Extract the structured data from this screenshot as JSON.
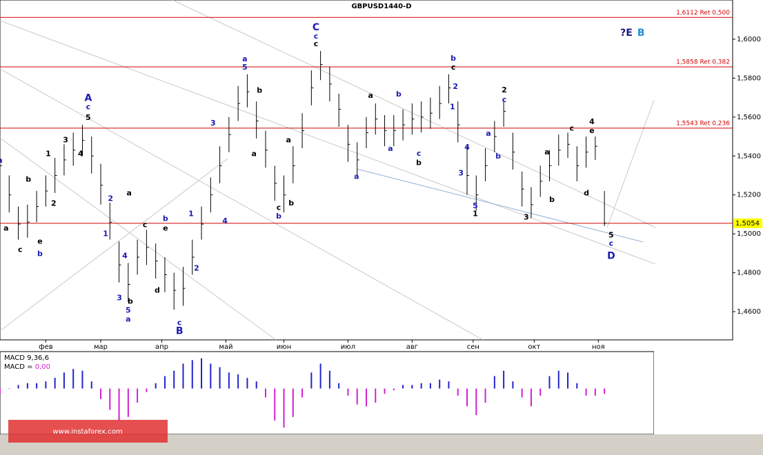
{
  "watermark": "www.instaforex.com",
  "chart_data": [
    {
      "type": "ohlc",
      "title": "GBPUSD1440-D",
      "color": "#000000",
      "x": [
        0,
        3,
        6,
        9,
        12,
        15,
        18,
        21,
        24,
        27,
        30,
        33,
        36,
        39,
        42,
        45,
        48,
        51,
        54,
        57,
        60,
        63,
        66,
        69,
        72,
        75,
        78,
        81,
        84,
        87,
        90,
        93,
        96,
        99,
        102,
        105,
        108,
        111,
        114,
        117,
        120,
        123,
        126,
        129,
        132,
        135,
        138,
        141,
        144,
        147,
        150,
        153,
        156,
        159,
        162,
        165,
        168,
        171,
        174,
        177,
        180,
        183,
        186,
        189,
        192,
        195,
        198
      ],
      "high": [
        1.543,
        1.53,
        1.514,
        1.515,
        1.522,
        1.53,
        1.539,
        1.546,
        1.552,
        1.556,
        1.55,
        1.536,
        1.516,
        1.496,
        1.485,
        1.497,
        1.502,
        1.495,
        1.488,
        1.48,
        1.483,
        1.497,
        1.514,
        1.529,
        1.545,
        1.56,
        1.576,
        1.582,
        1.568,
        1.553,
        1.535,
        1.53,
        1.545,
        1.562,
        1.584,
        1.594,
        1.586,
        1.572,
        1.556,
        1.547,
        1.56,
        1.567,
        1.561,
        1.561,
        1.564,
        1.567,
        1.568,
        1.57,
        1.576,
        1.582,
        1.568,
        1.545,
        1.53,
        1.544,
        1.558,
        1.568,
        1.552,
        1.532,
        1.524,
        1.535,
        1.543,
        1.551,
        1.552,
        1.545,
        1.55,
        1.55,
        1.522
      ],
      "low": [
        1.527,
        1.511,
        1.497,
        1.498,
        1.506,
        1.514,
        1.521,
        1.53,
        1.535,
        1.54,
        1.531,
        1.515,
        1.497,
        1.475,
        1.465,
        1.479,
        1.484,
        1.477,
        1.47,
        1.461,
        1.463,
        1.479,
        1.497,
        1.511,
        1.526,
        1.542,
        1.558,
        1.565,
        1.549,
        1.534,
        1.517,
        1.511,
        1.526,
        1.544,
        1.566,
        1.579,
        1.568,
        1.555,
        1.537,
        1.53,
        1.544,
        1.551,
        1.545,
        1.545,
        1.548,
        1.551,
        1.552,
        1.554,
        1.559,
        1.567,
        1.547,
        1.52,
        1.512,
        1.527,
        1.542,
        1.555,
        1.533,
        1.514,
        1.508,
        1.519,
        1.527,
        1.535,
        1.539,
        1.527,
        1.534,
        1.538,
        1.504
      ],
      "close": [
        1.535,
        1.52,
        1.505,
        1.506,
        1.514,
        1.522,
        1.53,
        1.538,
        1.543,
        1.548,
        1.54,
        1.525,
        1.506,
        1.484,
        1.474,
        1.488,
        1.493,
        1.486,
        1.479,
        1.471,
        1.472,
        1.488,
        1.505,
        1.52,
        1.535,
        1.551,
        1.567,
        1.573,
        1.558,
        1.543,
        1.526,
        1.52,
        1.535,
        1.553,
        1.575,
        1.587,
        1.577,
        1.564,
        1.546,
        1.538,
        1.552,
        1.559,
        1.553,
        1.553,
        1.556,
        1.559,
        1.56,
        1.562,
        1.567,
        1.575,
        1.556,
        1.53,
        1.52,
        1.535,
        1.55,
        1.563,
        1.542,
        1.523,
        1.515,
        1.527,
        1.535,
        1.543,
        1.546,
        1.535,
        1.542,
        1.545,
        1.5054
      ],
      "xlim": [
        0,
        240
      ],
      "ylim": [
        1.4455,
        1.6152
      ],
      "yticks": [
        {
          "value": 1.46,
          "label": "1,4600"
        },
        {
          "value": 1.48,
          "label": "1,4800"
        },
        {
          "value": 1.5,
          "label": "1,5000"
        },
        {
          "value": 1.52,
          "label": "1,5200"
        },
        {
          "value": 1.54,
          "label": "1,5400"
        },
        {
          "value": 1.56,
          "label": "1,5600"
        },
        {
          "value": 1.58,
          "label": "1,5800"
        },
        {
          "value": 1.6,
          "label": "1,6000"
        }
      ],
      "xticks": [
        {
          "value": 15,
          "label": "фев"
        },
        {
          "value": 33,
          "label": "мар"
        },
        {
          "value": 53,
          "label": "апр"
        },
        {
          "value": 74,
          "label": "май"
        },
        {
          "value": 93,
          "label": "июн"
        },
        {
          "value": 114,
          "label": "июл"
        },
        {
          "value": 135,
          "label": "авг"
        },
        {
          "value": 155,
          "label": "сен"
        },
        {
          "value": 175,
          "label": "окт"
        },
        {
          "value": 196,
          "label": "ноя"
        }
      ],
      "levels": [
        {
          "value": 1.6112,
          "label": "1,6112 Ret 0,500",
          "color": "#d00000"
        },
        {
          "value": 1.5858,
          "label": "1,5858 Ret 0,382",
          "color": "#d00000"
        },
        {
          "value": 1.5543,
          "label": "1,5543 Ret 0,236",
          "color": "#d00000"
        },
        {
          "value": 1.5054,
          "color": "#d00000"
        }
      ],
      "last_price": {
        "value": 1.5054,
        "label": "1,5054",
        "color": "#ffff00"
      },
      "annotations": [
        {
          "text": "a",
          "x": 0,
          "y": 1.5377,
          "color": "#1a1ab4"
        },
        {
          "text": "A",
          "x": 28.9,
          "y": 1.5696,
          "color": "#1a1ab4"
        },
        {
          "text": "c",
          "x": 28.9,
          "y": 1.565,
          "color": "#1a1ab4"
        },
        {
          "text": "5",
          "x": 28.9,
          "y": 1.5596,
          "color": "#000000"
        },
        {
          "text": "1",
          "x": 15.8,
          "y": 1.5409,
          "color": "#000000"
        },
        {
          "text": "3",
          "x": 21.5,
          "y": 1.548,
          "color": "#000000"
        },
        {
          "text": "4",
          "x": 26.4,
          "y": 1.5409,
          "color": "#000000"
        },
        {
          "text": "b",
          "x": 9.3,
          "y": 1.5278,
          "color": "#000000"
        },
        {
          "text": "2",
          "x": 17.6,
          "y": 1.5154,
          "color": "#000000"
        },
        {
          "text": "a",
          "x": 2,
          "y": 1.5027,
          "color": "#000000"
        },
        {
          "text": "c",
          "x": 6.6,
          "y": 1.4917,
          "color": "#000000"
        },
        {
          "text": "e",
          "x": 13.1,
          "y": 1.4959,
          "color": "#000000"
        },
        {
          "text": "b",
          "x": 13.1,
          "y": 1.4896,
          "color": "#1a1ab4"
        },
        {
          "text": "2",
          "x": 36.2,
          "y": 1.5179,
          "color": "#1a1ab4"
        },
        {
          "text": "1",
          "x": 34.6,
          "y": 1.4998,
          "color": "#1a1ab4"
        },
        {
          "text": "4",
          "x": 40.9,
          "y": 1.4885,
          "color": "#1a1ab4"
        },
        {
          "text": "3",
          "x": 39.1,
          "y": 1.4669,
          "color": "#1a1ab4"
        },
        {
          "text": "b",
          "x": 42.7,
          "y": 1.4651,
          "color": "#000000"
        },
        {
          "text": "5",
          "x": 42,
          "y": 1.4605,
          "color": "#1a1ab4"
        },
        {
          "text": "a",
          "x": 42,
          "y": 1.4559,
          "color": "#1a1ab4"
        },
        {
          "text": "a",
          "x": 42.3,
          "y": 1.5207,
          "color": "#000000"
        },
        {
          "text": "c",
          "x": 47.5,
          "y": 1.5044,
          "color": "#000000"
        },
        {
          "text": "d",
          "x": 51.5,
          "y": 1.4708,
          "color": "#000000"
        },
        {
          "text": "b",
          "x": 54.2,
          "y": 1.5076,
          "color": "#1a1ab4"
        },
        {
          "text": "e",
          "x": 54.2,
          "y": 1.5027,
          "color": "#000000"
        },
        {
          "text": "c",
          "x": 58.8,
          "y": 1.4542,
          "color": "#1a1ab4"
        },
        {
          "text": "B",
          "x": 58.8,
          "y": 1.4499,
          "color": "#1a1ab4"
        },
        {
          "text": "1",
          "x": 62.6,
          "y": 1.5101,
          "color": "#1a1ab4"
        },
        {
          "text": "2",
          "x": 64.4,
          "y": 1.4821,
          "color": "#1a1ab4"
        },
        {
          "text": "4",
          "x": 73.7,
          "y": 1.5065,
          "color": "#1a1ab4"
        },
        {
          "text": "3",
          "x": 69.8,
          "y": 1.5568,
          "color": "#1a1ab4"
        },
        {
          "text": "a",
          "x": 80.2,
          "y": 1.5897,
          "color": "#1a1ab4"
        },
        {
          "text": "5",
          "x": 80.2,
          "y": 1.5855,
          "color": "#1a1ab4"
        },
        {
          "text": "b",
          "x": 85,
          "y": 1.5735,
          "color": "#000000"
        },
        {
          "text": "a",
          "x": 83.2,
          "y": 1.5409,
          "color": "#000000"
        },
        {
          "text": "a",
          "x": 94.5,
          "y": 1.548,
          "color": "#000000"
        },
        {
          "text": "b",
          "x": 95.4,
          "y": 1.5157,
          "color": "#000000"
        },
        {
          "text": "c",
          "x": 91.3,
          "y": 1.5133,
          "color": "#000000"
        },
        {
          "text": "b",
          "x": 91.3,
          "y": 1.509,
          "color": "#1a1ab4"
        },
        {
          "text": "C",
          "x": 103.5,
          "y": 1.606,
          "color": "#1a1ab4"
        },
        {
          "text": "c",
          "x": 103.5,
          "y": 1.6014,
          "color": "#1a1ab4"
        },
        {
          "text": "c",
          "x": 103.5,
          "y": 1.5975,
          "color": "#000000"
        },
        {
          "text": "b",
          "x": 148.5,
          "y": 1.5901,
          "color": "#1a1ab4"
        },
        {
          "text": "c",
          "x": 148.5,
          "y": 1.5855,
          "color": "#000000"
        },
        {
          "text": "2",
          "x": 149.2,
          "y": 1.5756,
          "color": "#1a1ab4"
        },
        {
          "text": "1",
          "x": 148.2,
          "y": 1.565,
          "color": "#1a1ab4"
        },
        {
          "text": "a",
          "x": 121.4,
          "y": 1.571,
          "color": "#000000"
        },
        {
          "text": "b",
          "x": 130.6,
          "y": 1.5717,
          "color": "#1a1ab4"
        },
        {
          "text": "a",
          "x": 127.9,
          "y": 1.5437,
          "color": "#1a1ab4"
        },
        {
          "text": "c",
          "x": 137.2,
          "y": 1.5412,
          "color": "#1a1ab4"
        },
        {
          "text": "b",
          "x": 137.2,
          "y": 1.5363,
          "color": "#000000"
        },
        {
          "text": "a",
          "x": 116.8,
          "y": 1.5292,
          "color": "#1a1ab4"
        },
        {
          "text": "4",
          "x": 153,
          "y": 1.5444,
          "color": "#1a1ab4"
        },
        {
          "text": "3",
          "x": 151,
          "y": 1.531,
          "color": "#1a1ab4"
        },
        {
          "text": "5",
          "x": 155.7,
          "y": 1.5143,
          "color": "#1a1ab4"
        },
        {
          "text": "1",
          "x": 155.7,
          "y": 1.5101,
          "color": "#000000"
        },
        {
          "text": "2",
          "x": 165.2,
          "y": 1.5738,
          "color": "#000000"
        },
        {
          "text": "c",
          "x": 165.2,
          "y": 1.5688,
          "color": "#1a1ab4"
        },
        {
          "text": "a",
          "x": 160,
          "y": 1.5515,
          "color": "#1a1ab4"
        },
        {
          "text": "b",
          "x": 163.2,
          "y": 1.5398,
          "color": "#1a1ab4"
        },
        {
          "text": "3",
          "x": 172.4,
          "y": 1.5083,
          "color": "#000000"
        },
        {
          "text": "a",
          "x": 179.2,
          "y": 1.5419,
          "color": "#000000"
        },
        {
          "text": "b",
          "x": 180.8,
          "y": 1.5175,
          "color": "#000000"
        },
        {
          "text": "c",
          "x": 187.3,
          "y": 1.554,
          "color": "#000000"
        },
        {
          "text": "4",
          "x": 193.9,
          "y": 1.5575,
          "color": "#000000"
        },
        {
          "text": "e",
          "x": 193.9,
          "y": 1.5529,
          "color": "#000000"
        },
        {
          "text": "d",
          "x": 192.1,
          "y": 1.5207,
          "color": "#000000"
        },
        {
          "text": "5",
          "x": 200.2,
          "y": 1.4991,
          "color": "#000000"
        },
        {
          "text": "c",
          "x": 200.2,
          "y": 1.4949,
          "color": "#1a1ab4"
        },
        {
          "text": "D",
          "x": 200.2,
          "y": 1.4885,
          "color": "#1a1ab4"
        },
        {
          "text": "?E",
          "x": 205.2,
          "y": 1.6032,
          "color": "#1a1a80"
        },
        {
          "text": "B",
          "x": 210,
          "y": 1.6032,
          "color": "#1e90d6"
        }
      ]
    },
    {
      "type": "histogram",
      "legend": "MACD 9,36,6",
      "readout_name": "MACD = ",
      "readout_value": {
        "value": 0,
        "label": "0,00"
      },
      "readout_color": "#d020d0",
      "x": [
        0,
        3,
        6,
        9,
        12,
        15,
        18,
        21,
        24,
        27,
        30,
        33,
        36,
        39,
        42,
        45,
        48,
        51,
        54,
        57,
        60,
        63,
        66,
        69,
        72,
        75,
        78,
        81,
        84,
        87,
        90,
        93,
        96,
        99,
        102,
        105,
        108,
        111,
        114,
        117,
        120,
        123,
        126,
        129,
        132,
        135,
        138,
        141,
        144,
        147,
        150,
        153,
        156,
        159,
        162,
        165,
        168,
        171,
        174,
        177,
        180,
        183,
        186,
        189,
        192,
        195,
        198
      ],
      "values": [
        -0.003,
        0.0,
        0.002,
        0.003,
        0.003,
        0.004,
        0.006,
        0.009,
        0.011,
        0.01,
        0.004,
        -0.006,
        -0.012,
        -0.018,
        -0.016,
        -0.008,
        -0.002,
        0.003,
        0.007,
        0.01,
        0.014,
        0.016,
        0.017,
        0.014,
        0.012,
        0.009,
        0.008,
        0.006,
        0.004,
        -0.005,
        -0.018,
        -0.022,
        -0.016,
        -0.005,
        0.009,
        0.014,
        0.01,
        0.003,
        -0.004,
        -0.009,
        -0.01,
        -0.008,
        -0.003,
        -0.001,
        0.002,
        0.002,
        0.003,
        0.003,
        0.005,
        0.004,
        -0.004,
        -0.01,
        -0.015,
        -0.008,
        0.007,
        0.01,
        0.004,
        -0.005,
        -0.01,
        -0.004,
        0.007,
        0.01,
        0.009,
        0.003,
        -0.004,
        -0.004,
        -0.003
      ],
      "positive_color": "#2222cc",
      "negative_color": "#d020d0",
      "xlim": [
        0,
        240
      ],
      "ylim": [
        -0.025,
        0.02
      ]
    }
  ]
}
